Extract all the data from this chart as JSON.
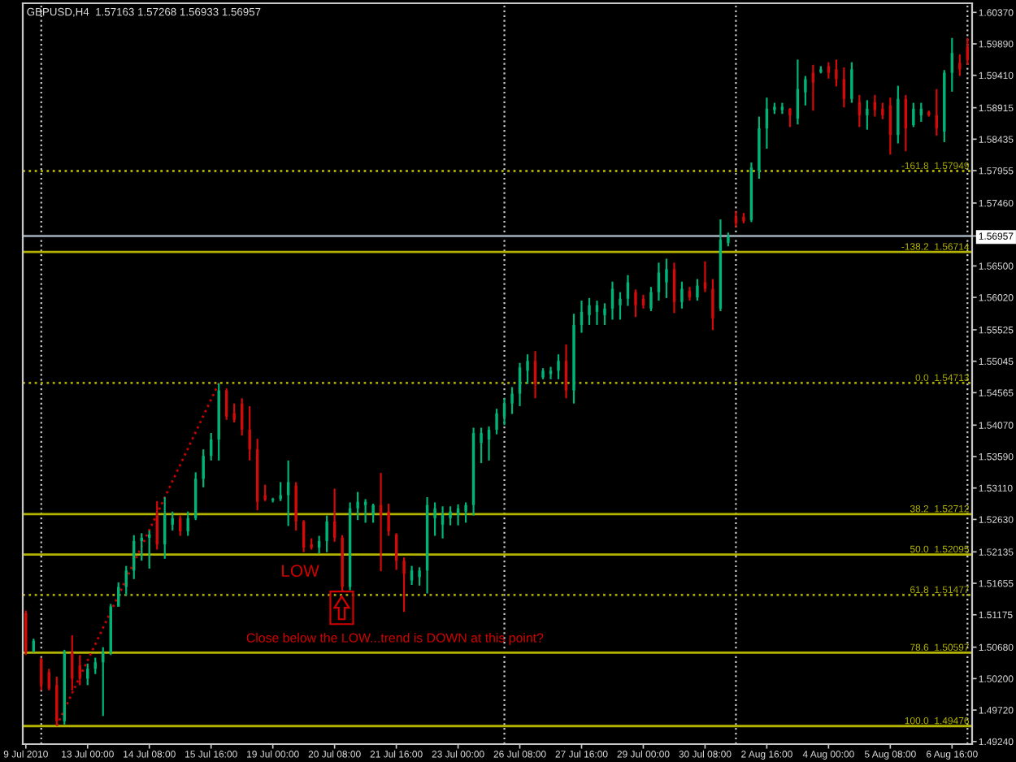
{
  "chart_data": {
    "type": "candlestick",
    "title": "GBPUSD,H4  1.57163 1.57268 1.56933 1.56957",
    "categories": [
      "9 Jul 2010",
      null,
      null,
      null,
      null,
      null,
      null,
      null,
      "13 Jul 00:00",
      null,
      null,
      null,
      null,
      null,
      null,
      null,
      "14 Jul 08:00",
      null,
      null,
      null,
      null,
      null,
      null,
      null,
      "15 Jul 16:00",
      null,
      null,
      null,
      null,
      null,
      null,
      null,
      "19 Jul 00:00",
      null,
      null,
      null,
      null,
      null,
      null,
      null,
      "20 Jul 08:00",
      null,
      null,
      null,
      null,
      null,
      null,
      null,
      "21 Jul 16:00",
      null,
      null,
      null,
      null,
      null,
      null,
      null,
      "23 Jul 00:00",
      null,
      null,
      null,
      null,
      null,
      null,
      null,
      "26 Jul 08:00",
      null,
      null,
      null,
      null,
      null,
      null,
      null,
      "27 Jul 16:00",
      null,
      null,
      null,
      null,
      null,
      null,
      null,
      "29 Jul 00:00",
      null,
      null,
      null,
      null,
      null,
      null,
      null,
      "30 Jul 08:00",
      null,
      null,
      null,
      null,
      null,
      null,
      null,
      "2 Aug 16:00",
      null,
      null,
      null,
      null,
      null,
      null,
      null,
      "4 Aug 00:00",
      null,
      null,
      null,
      null,
      null,
      null,
      null,
      "5 Aug 08:00",
      null,
      null,
      null,
      null,
      null,
      null,
      null,
      "6 Aug 16:00",
      null,
      null
    ],
    "ohlc": [
      [
        1.512,
        1.5124,
        1.5056,
        1.506
      ],
      [
        1.5062,
        1.5081,
        1.506,
        1.5078
      ],
      [
        1.505,
        1.5052,
        1.5002,
        1.501
      ],
      [
        1.503,
        1.5035,
        1.5002,
        1.5005
      ],
      [
        1.501,
        1.5023,
        1.4948,
        1.4955
      ],
      [
        1.4955,
        1.5064,
        1.495,
        1.506
      ],
      [
        1.506,
        1.5086,
        1.5002,
        1.502
      ],
      [
        1.504,
        1.5056,
        1.501,
        1.502
      ],
      [
        1.502,
        1.5043,
        1.501,
        1.5035
      ],
      [
        1.5035,
        1.5052,
        1.5027,
        1.5045
      ],
      [
        1.5045,
        1.5068,
        1.4963,
        1.506
      ],
      [
        1.506,
        1.5134,
        1.5056,
        1.513
      ],
      [
        1.513,
        1.5167,
        1.513,
        1.516
      ],
      [
        1.516,
        1.5192,
        1.5147,
        1.5185
      ],
      [
        1.5185,
        1.5239,
        1.5172,
        1.523
      ],
      [
        1.523,
        1.5242,
        1.52,
        1.5235
      ],
      [
        1.5235,
        1.5246,
        1.5188,
        1.524
      ],
      [
        1.527,
        1.5291,
        1.5217,
        1.5225
      ],
      [
        1.5225,
        1.5297,
        1.5203,
        1.527
      ],
      [
        1.5255,
        1.5275,
        1.5246,
        1.5265
      ],
      [
        1.5265,
        1.5269,
        1.5238,
        1.5245
      ],
      [
        1.5245,
        1.5275,
        1.5238,
        1.5265
      ],
      [
        1.5265,
        1.5335,
        1.5262,
        1.5325
      ],
      [
        1.5325,
        1.537,
        1.5312,
        1.536
      ],
      [
        1.536,
        1.5395,
        1.5353,
        1.5385
      ],
      [
        1.5385,
        1.5471,
        1.5353,
        1.546
      ],
      [
        1.546,
        1.5463,
        1.5415,
        1.542
      ],
      [
        1.5425,
        1.544,
        1.5411,
        1.5415
      ],
      [
        1.544,
        1.5448,
        1.5391,
        1.54
      ],
      [
        1.54,
        1.5436,
        1.5353,
        1.537
      ],
      [
        1.537,
        1.5386,
        1.5277,
        1.529
      ],
      [
        1.53,
        1.5316,
        1.5291,
        1.5293
      ],
      [
        1.5292,
        1.5296,
        1.5289,
        1.5294
      ],
      [
        1.5294,
        1.532,
        1.5291,
        1.53
      ],
      [
        1.53,
        1.5353,
        1.5253,
        1.532
      ],
      [
        1.5315,
        1.532,
        1.5246,
        1.526
      ],
      [
        1.526,
        1.5262,
        1.5213,
        1.522
      ],
      [
        1.5225,
        1.5234,
        1.5217,
        1.522
      ],
      [
        1.522,
        1.5238,
        1.5211,
        1.523
      ],
      [
        1.523,
        1.5269,
        1.5213,
        1.526
      ],
      [
        1.526,
        1.531,
        1.5229,
        1.5235
      ],
      [
        1.5235,
        1.5239,
        1.5153,
        1.516
      ],
      [
        1.516,
        1.5289,
        1.5155,
        1.528
      ],
      [
        1.528,
        1.5305,
        1.5262,
        1.529
      ],
      [
        1.5285,
        1.5294,
        1.5258,
        1.529
      ],
      [
        1.527,
        1.5287,
        1.5258,
        1.5285
      ],
      [
        1.5285,
        1.5334,
        1.5184,
        1.527
      ],
      [
        1.5275,
        1.5287,
        1.5238,
        1.5245
      ],
      [
        1.524,
        1.5242,
        1.5186,
        1.52
      ],
      [
        1.52,
        1.5205,
        1.5122,
        1.518
      ],
      [
        1.517,
        1.5192,
        1.5163,
        1.5185
      ],
      [
        1.5175,
        1.519,
        1.5162,
        1.5185
      ],
      [
        1.5185,
        1.5297,
        1.515,
        1.5285
      ],
      [
        1.5265,
        1.5289,
        1.5238,
        1.528
      ],
      [
        1.5255,
        1.5283,
        1.5234,
        1.527
      ],
      [
        1.5265,
        1.5283,
        1.5254,
        1.5275
      ],
      [
        1.527,
        1.5286,
        1.5254,
        1.528
      ],
      [
        1.5275,
        1.5289,
        1.5258,
        1.5285
      ],
      [
        1.5285,
        1.5403,
        1.5269,
        1.5395
      ],
      [
        1.538,
        1.5403,
        1.5349,
        1.5395
      ],
      [
        1.5385,
        1.5405,
        1.5353,
        1.54
      ],
      [
        1.54,
        1.5432,
        1.5393,
        1.5425
      ],
      [
        1.542,
        1.5448,
        1.5407,
        1.544
      ],
      [
        1.544,
        1.5465,
        1.5424,
        1.5455
      ],
      [
        1.5455,
        1.5502,
        1.5436,
        1.5495
      ],
      [
        1.549,
        1.5515,
        1.547,
        1.5505
      ],
      [
        1.5505,
        1.552,
        1.5448,
        1.547
      ],
      [
        1.548,
        1.5494,
        1.5477,
        1.549
      ],
      [
        1.5485,
        1.5496,
        1.5477,
        1.549
      ],
      [
        1.549,
        1.5515,
        1.5477,
        1.5505
      ],
      [
        1.5505,
        1.553,
        1.5448,
        1.546
      ],
      [
        1.546,
        1.5577,
        1.544,
        1.556
      ],
      [
        1.556,
        1.5597,
        1.5548,
        1.558
      ],
      [
        1.5575,
        1.5601,
        1.556,
        1.559
      ],
      [
        1.558,
        1.5597,
        1.556,
        1.559
      ],
      [
        1.5575,
        1.5593,
        1.556,
        1.5585
      ],
      [
        1.5585,
        1.5626,
        1.5568,
        1.5615
      ],
      [
        1.559,
        1.561,
        1.5568,
        1.56
      ],
      [
        1.56,
        1.5636,
        1.5589,
        1.5625
      ],
      [
        1.561,
        1.5614,
        1.5572,
        1.559
      ],
      [
        1.56,
        1.5606,
        1.5585,
        1.559
      ],
      [
        1.5585,
        1.5618,
        1.5581,
        1.561
      ],
      [
        1.561,
        1.5655,
        1.5597,
        1.564
      ],
      [
        1.5625,
        1.5661,
        1.5601,
        1.5645
      ],
      [
        1.5645,
        1.5655,
        1.5578,
        1.5595
      ],
      [
        1.5595,
        1.5626,
        1.5585,
        1.5615
      ],
      [
        1.5612,
        1.5618,
        1.5597,
        1.5602
      ],
      [
        1.5602,
        1.563,
        1.5597,
        1.562
      ],
      [
        1.5625,
        1.5657,
        1.561,
        1.5615
      ],
      [
        1.5615,
        1.563,
        1.5552,
        1.557
      ],
      [
        1.5585,
        1.5721,
        1.5581,
        1.569
      ],
      [
        1.5685,
        1.5701,
        1.568,
        1.5695
      ],
      [
        1.5725,
        1.5734,
        1.5709,
        1.5715
      ],
      [
        1.5725,
        1.5731,
        1.5715,
        1.5718
      ],
      [
        1.572,
        1.5808,
        1.5717,
        1.58
      ],
      [
        1.5795,
        1.5878,
        1.5783,
        1.586
      ],
      [
        1.586,
        1.5907,
        1.5829,
        1.589
      ],
      [
        1.5888,
        1.5899,
        1.5882,
        1.5893
      ],
      [
        1.5888,
        1.5899,
        1.5882,
        1.5893
      ],
      [
        1.589,
        1.5891,
        1.5862,
        1.588
      ],
      [
        1.5875,
        1.5965,
        1.5866,
        1.592
      ],
      [
        1.5915,
        1.594,
        1.5895,
        1.5935
      ],
      [
        1.5945,
        1.5957,
        1.5887,
        1.593
      ],
      [
        1.5946,
        1.5955,
        1.5944,
        1.595
      ],
      [
        1.5955,
        1.5961,
        1.5936,
        1.5945
      ],
      [
        1.595,
        1.5965,
        1.5924,
        1.5935
      ],
      [
        1.5935,
        1.5953,
        1.5892,
        1.5905
      ],
      [
        1.5905,
        1.5961,
        1.5899,
        1.595
      ],
      [
        1.59,
        1.5911,
        1.5862,
        1.588
      ],
      [
        1.588,
        1.5903,
        1.5858,
        1.589
      ],
      [
        1.59,
        1.5911,
        1.5878,
        1.5888
      ],
      [
        1.589,
        1.5899,
        1.5874,
        1.588
      ],
      [
        1.5895,
        1.5907,
        1.582,
        1.585
      ],
      [
        1.585,
        1.5925,
        1.5837,
        1.5905
      ],
      [
        1.5905,
        1.5911,
        1.5825,
        1.586
      ],
      [
        1.5865,
        1.5899,
        1.5862,
        1.589
      ],
      [
        1.588,
        1.5899,
        1.587,
        1.589
      ],
      [
        1.5885,
        1.5887,
        1.5878,
        1.588
      ],
      [
        1.588,
        1.592,
        1.5849,
        1.586
      ],
      [
        1.5855,
        1.5949,
        1.5839,
        1.5945
      ],
      [
        1.5945,
        1.5998,
        1.5916,
        1.5975
      ],
      [
        1.596,
        1.5973,
        1.594,
        1.595
      ],
      [
        1.5985,
        1.5998,
        1.5957,
        1.5965
      ]
    ],
    "colors": [
      "#d20a0a",
      "#00b478",
      "#d20a0a",
      "#d20a0a",
      "#d20a0a",
      "#00b478",
      "#d20a0a",
      "#d20a0a",
      "#00b478",
      "#00b478",
      "#00b478",
      "#00b478",
      "#00b478",
      "#00b478",
      "#00b478",
      "#00b478",
      "#00b478",
      "#d20a0a",
      "#00b478",
      "#00b478",
      "#d20a0a",
      "#00b478",
      "#00b478",
      "#00b478",
      "#00b478",
      "#00b478",
      "#d20a0a",
      "#d20a0a",
      "#d20a0a",
      "#d20a0a",
      "#d20a0a",
      "#d20a0a",
      "#00b478",
      "#00b478",
      "#00b478",
      "#d20a0a",
      "#d20a0a",
      "#d20a0a",
      "#00b478",
      "#00b478",
      "#d20a0a",
      "#d20a0a",
      "#00b478",
      "#00b478",
      "#00b478",
      "#00b478",
      "#d20a0a",
      "#d20a0a",
      "#d20a0a",
      "#d20a0a",
      "#00b478",
      "#00b478",
      "#00b478",
      "#00b478",
      "#00b478",
      "#00b478",
      "#00b478",
      "#00b478",
      "#00b478",
      "#00b478",
      "#00b478",
      "#00b478",
      "#00b478",
      "#00b478",
      "#00b478",
      "#00b478",
      "#d20a0a",
      "#00b478",
      "#00b478",
      "#00b478",
      "#d20a0a",
      "#00b478",
      "#00b478",
      "#00b478",
      "#00b478",
      "#00b478",
      "#00b478",
      "#00b478",
      "#00b478",
      "#d20a0a",
      "#d20a0a",
      "#00b478",
      "#00b478",
      "#00b478",
      "#d20a0a",
      "#00b478",
      "#d20a0a",
      "#00b478",
      "#d20a0a",
      "#d20a0a",
      "#00b478",
      "#00b478",
      "#d20a0a",
      "#d20a0a",
      "#00b478",
      "#00b478",
      "#00b478",
      "#00b478",
      "#00b478",
      "#d20a0a",
      "#00b478",
      "#00b478",
      "#d20a0a",
      "#00b478",
      "#d20a0a",
      "#d20a0a",
      "#d20a0a",
      "#00b478",
      "#d20a0a",
      "#00b478",
      "#d20a0a",
      "#d20a0a",
      "#d20a0a",
      "#00b478",
      "#d20a0a",
      "#00b478",
      "#00b478",
      "#d20a0a",
      "#d20a0a",
      "#00b478",
      "#00b478",
      "#d20a0a",
      "#d20a0a"
    ],
    "series": [
      {
        "type": "line",
        "color": "#c80000",
        "line_style": "dotted",
        "values": [
          null,
          null,
          null,
          null,
          1.4948,
          null,
          null,
          null,
          null,
          null,
          null,
          null,
          null,
          null,
          null,
          null,
          null,
          null,
          null,
          null,
          null,
          null,
          null,
          null,
          null,
          1.5471,
          null,
          null,
          null,
          null,
          null,
          null,
          null,
          null,
          null,
          null,
          null,
          null,
          null,
          null,
          null,
          null,
          null,
          null,
          null,
          null,
          null,
          null,
          null,
          null,
          null,
          null,
          null,
          null,
          null,
          null,
          null,
          null,
          null,
          null,
          null,
          null,
          null,
          null,
          null,
          null,
          null,
          null,
          null,
          null,
          null,
          null,
          null,
          null,
          null,
          null,
          null,
          null,
          null,
          null,
          null,
          null,
          null,
          null,
          null,
          null,
          null,
          null,
          null,
          null,
          null,
          null,
          null,
          null,
          null,
          null,
          null,
          null,
          null,
          null,
          null,
          null,
          null,
          null,
          null,
          null,
          null,
          null,
          null,
          null,
          null,
          null,
          null,
          null,
          null,
          null,
          null,
          null,
          null,
          null,
          null,
          null,
          null
        ]
      }
    ],
    "ylim": [
      1.492,
      1.6051
    ],
    "yticks": [
      {
        "value": 1.6037,
        "label": "1.60370"
      },
      {
        "value": 1.5989,
        "label": "1.59890"
      },
      {
        "value": 1.5941,
        "label": "1.59410"
      },
      1.58915,
      1.58435,
      1.57955,
      {
        "value": 1.5746,
        "label": "1.57460"
      },
      1.56957,
      {
        "value": 1.565,
        "label": "1.56500"
      },
      {
        "value": 1.5602,
        "label": "1.56020"
      },
      1.55525,
      1.55045,
      1.54565,
      {
        "value": 1.5407,
        "label": "1.54070"
      },
      {
        "value": 1.5359,
        "label": "1.53590"
      },
      {
        "value": 1.5311,
        "label": "1.53110"
      },
      {
        "value": 1.5263,
        "label": "1.52630"
      },
      1.52135,
      1.51655,
      1.51175,
      {
        "value": 1.5068,
        "label": "1.50680"
      },
      {
        "value": 1.502,
        "label": "1.50200"
      },
      {
        "value": 1.4972,
        "label": "1.49720"
      },
      {
        "value": 1.4924,
        "label": "1.49240"
      }
    ],
    "grid": "x",
    "ref_lines": [
      {
        "axis": "y",
        "value": 1.56957,
        "color": "#8c96a0"
      },
      {
        "axis": "y",
        "value": 1.57949,
        "label": "-161.8  1.57949",
        "color": "#a8a800",
        "line_style": "dotted"
      },
      {
        "axis": "y",
        "value": 1.56714,
        "label": "-138.2  1.56714",
        "color": "#b4b400"
      },
      {
        "axis": "y",
        "value": 1.54713,
        "label": "0.0  1.54713",
        "color": "#a8a800",
        "line_style": "dotted"
      },
      {
        "axis": "y",
        "value": 1.52712,
        "label": "38.2  1.52712",
        "color": "#b4b400"
      },
      {
        "axis": "y",
        "value": 1.52095,
        "label": "50.0  1.52095",
        "color": "#b4b400"
      },
      {
        "axis": "y",
        "value": 1.51477,
        "label": "61.8  1.51477",
        "color": "#a8a800",
        "line_style": "dotted"
      },
      {
        "axis": "y",
        "value": 1.50597,
        "label": "78.6  1.50597",
        "color": "#b4b400"
      },
      {
        "axis": "y",
        "value": 1.49476,
        "label": "100.0  1.49476",
        "color": "#b4b400"
      }
    ],
    "annotations": [
      "LOW",
      "Close below the LOW...trend is DOWN at this point?"
    ]
  }
}
